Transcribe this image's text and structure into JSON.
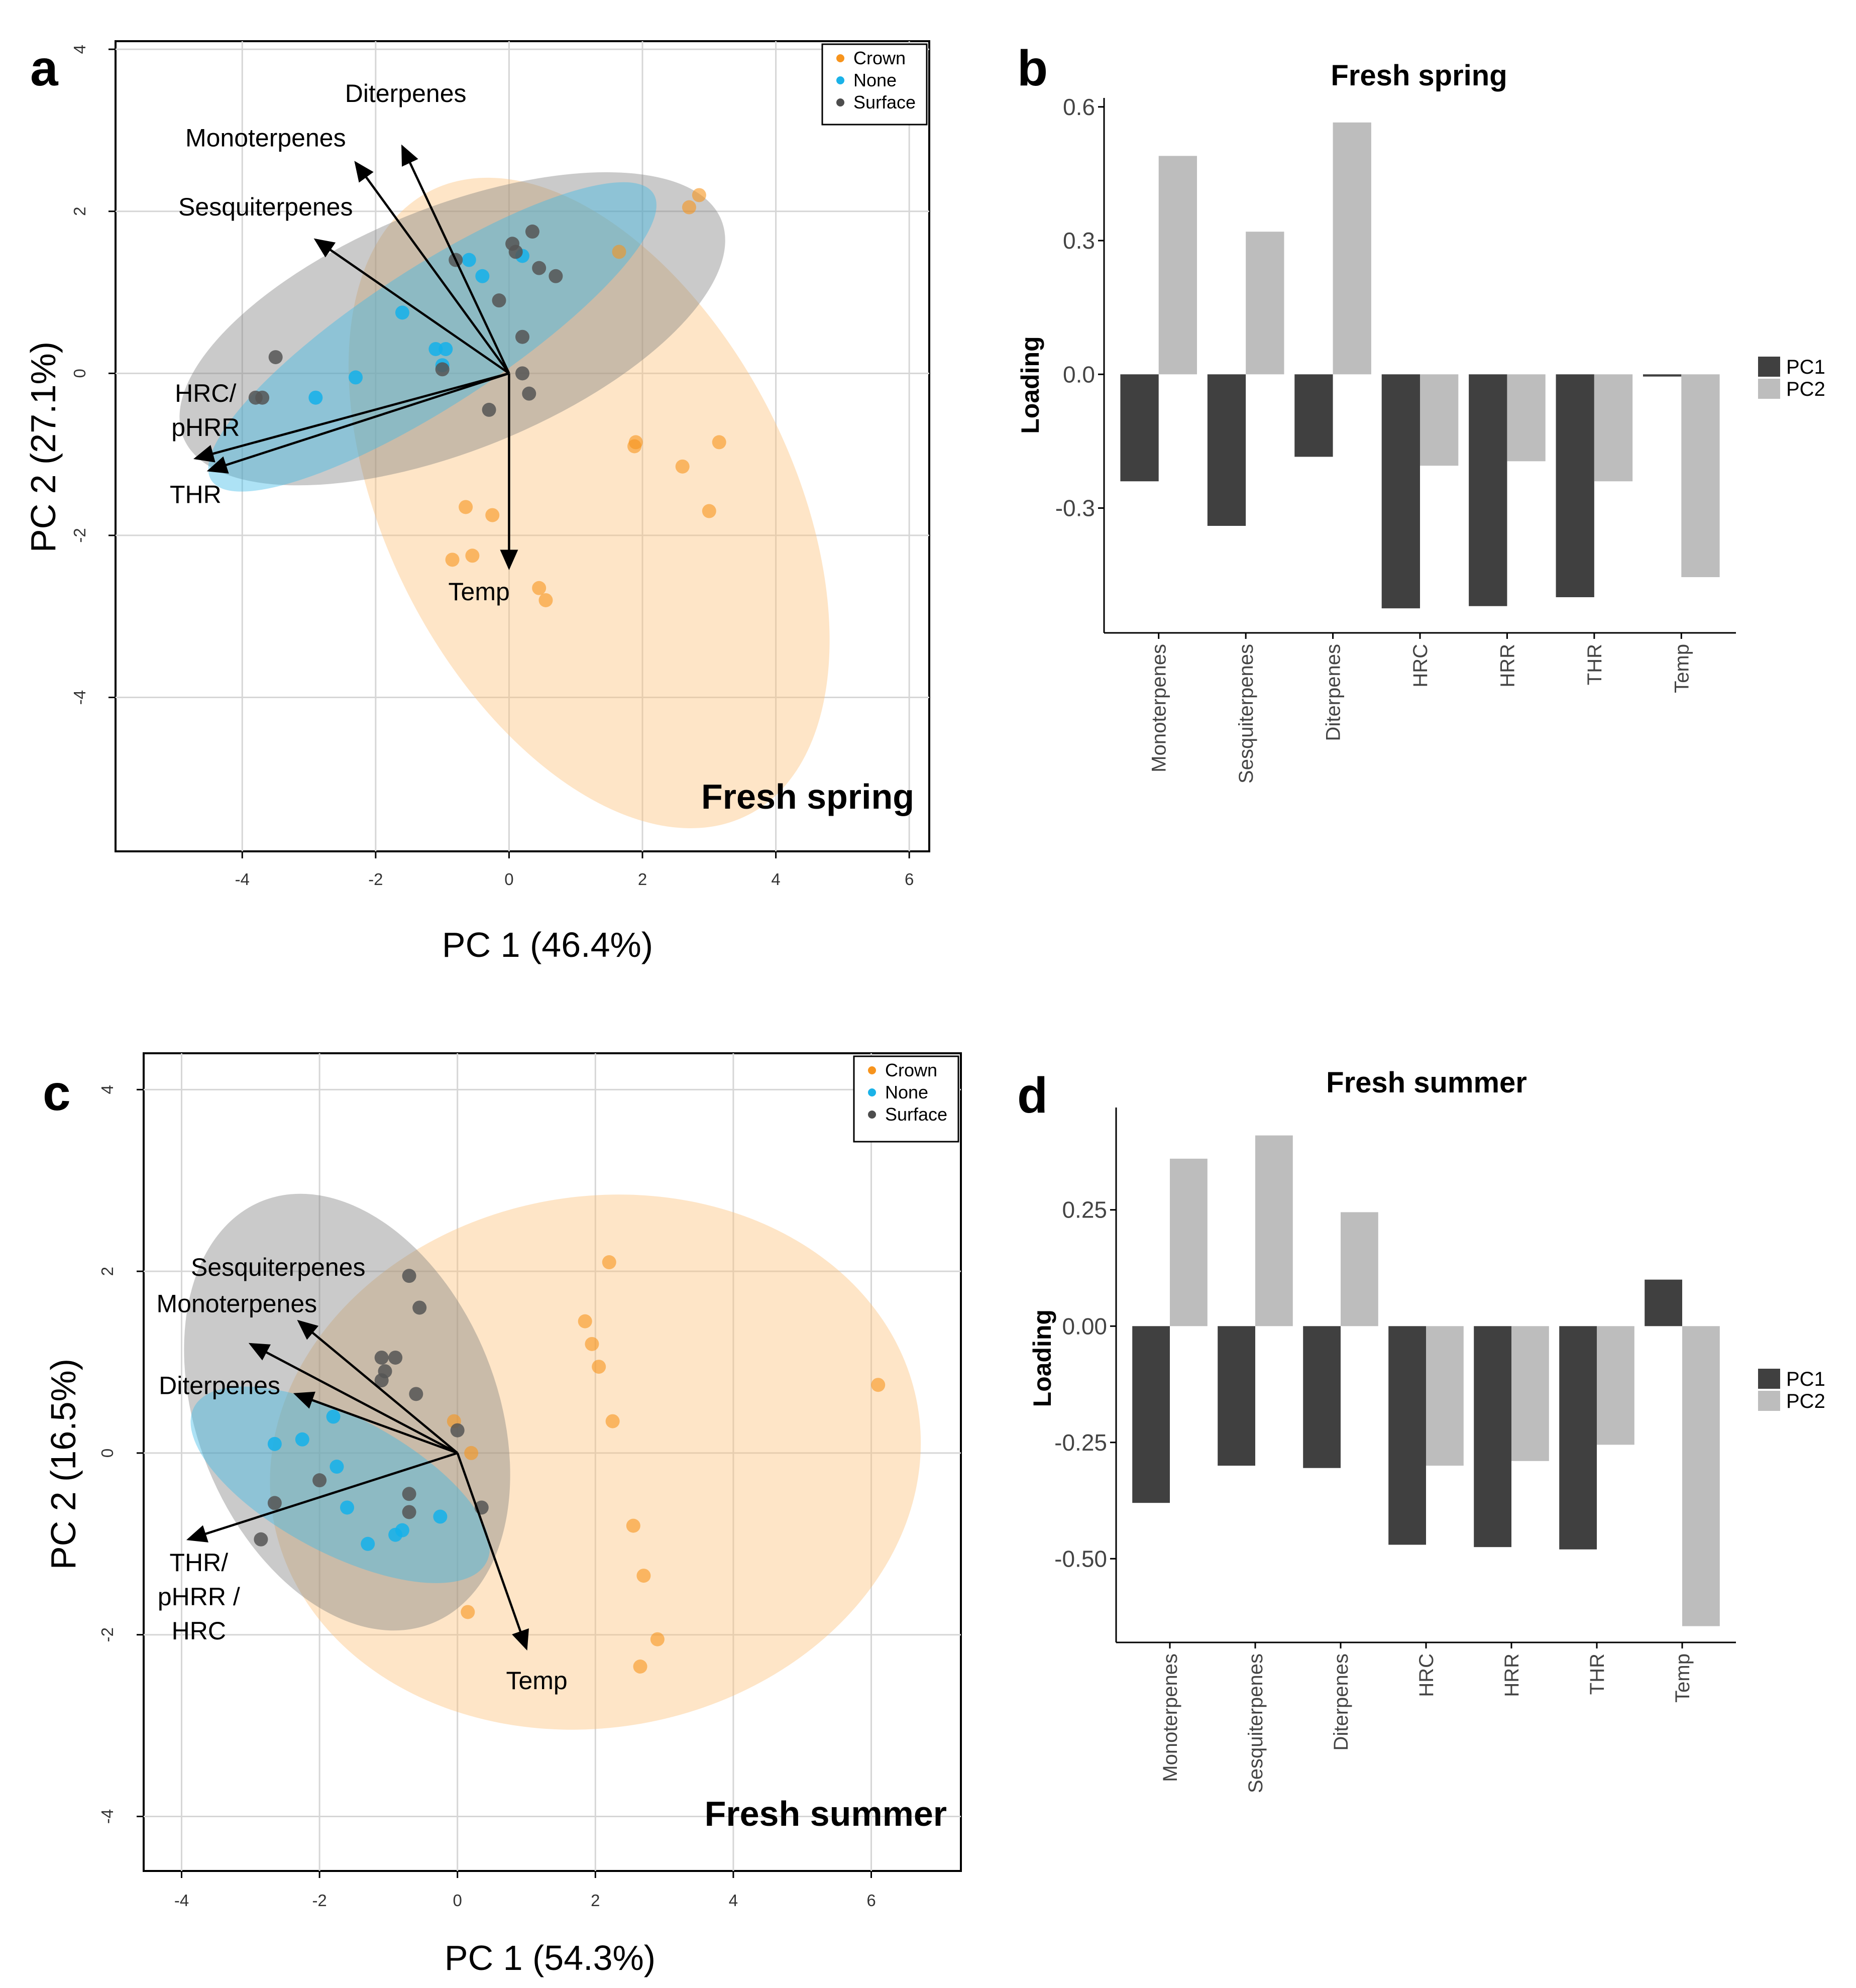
{
  "chart_data": [
    {
      "type": "scatter",
      "panel": "a",
      "title": "Fresh spring",
      "xlabel": "PC 1 (46.4%)",
      "ylabel": "PC 2 (27.1%)",
      "xlim": [
        -5.9,
        6.3
      ],
      "ylim": [
        -5.9,
        4.1
      ],
      "xticks": [
        -4,
        -2,
        0,
        2,
        4,
        6
      ],
      "yticks": [
        -4,
        -2,
        0,
        2,
        4
      ],
      "grid": true,
      "legend": [
        "Crown",
        "None",
        "Surface"
      ],
      "colors": {
        "Crown": "#f7941d",
        "None": "#1ab2e8",
        "Surface": "#4d4d4d"
      },
      "legend_position": "top-right",
      "series": [
        {
          "name": "Crown",
          "points": [
            [
              2.7,
              2.05
            ],
            [
              2.85,
              2.2
            ],
            [
              1.65,
              1.5
            ],
            [
              1.9,
              -0.85
            ],
            [
              1.88,
              -0.9
            ],
            [
              2.6,
              -1.15
            ],
            [
              3.15,
              -0.85
            ],
            [
              3.0,
              -1.7
            ],
            [
              -0.65,
              -1.65
            ],
            [
              -0.25,
              -1.75
            ],
            [
              -0.85,
              -2.3
            ],
            [
              -0.55,
              -2.25
            ],
            [
              0.45,
              -2.65
            ],
            [
              0.55,
              -2.8
            ]
          ]
        },
        {
          "name": "None",
          "points": [
            [
              -0.6,
              1.4
            ],
            [
              -0.4,
              1.2
            ],
            [
              0.2,
              1.45
            ],
            [
              -1.6,
              0.75
            ],
            [
              -1.1,
              0.3
            ],
            [
              -0.95,
              0.3
            ],
            [
              -2.3,
              -0.05
            ],
            [
              -2.9,
              -0.3
            ],
            [
              -1.0,
              0.1
            ]
          ]
        },
        {
          "name": "Surface",
          "points": [
            [
              0.35,
              1.75
            ],
            [
              0.05,
              1.6
            ],
            [
              0.1,
              1.5
            ],
            [
              -0.8,
              1.4
            ],
            [
              0.45,
              1.3
            ],
            [
              0.7,
              1.2
            ],
            [
              -0.15,
              0.9
            ],
            [
              0.2,
              0.45
            ],
            [
              -3.5,
              0.2
            ],
            [
              -3.8,
              -0.3
            ],
            [
              -3.7,
              -0.3
            ],
            [
              -1.0,
              0.05
            ],
            [
              0.2,
              0.0
            ],
            [
              0.3,
              -0.25
            ],
            [
              -0.3,
              -0.45
            ]
          ]
        }
      ],
      "ellipses": [
        {
          "name": "Crown",
          "cx": 1.2,
          "cy": -1.6,
          "rx": 5.25,
          "ry": 2.5,
          "angle_deg": -63
        },
        {
          "name": "None",
          "cx": -1.15,
          "cy": 0.45,
          "rx": 3.95,
          "ry": 0.85,
          "angle_deg": 33
        },
        {
          "name": "Surface",
          "cx": -0.85,
          "cy": 0.55,
          "rx": 4.35,
          "ry": 1.5,
          "angle_deg": 22
        }
      ],
      "vectors": [
        {
          "name": "Diterpenes",
          "x": -1.6,
          "y": 2.8
        },
        {
          "name": "Monoterpenes",
          "x": -2.3,
          "y": 2.6
        },
        {
          "name": "Sesquiterpenes",
          "x": -2.9,
          "y": 1.65
        },
        {
          "name": "HRC/ pHRR",
          "x": -4.7,
          "y": -1.05
        },
        {
          "name": "THR",
          "x": -4.5,
          "y": -1.2
        },
        {
          "name": "Temp",
          "x": 0.0,
          "y": -2.4
        }
      ],
      "vector_labels": [
        {
          "lines": [
            "Diterpenes"
          ],
          "anchor": [
            -1.55,
            3.35
          ]
        },
        {
          "lines": [
            "Monoterpenes"
          ],
          "anchor": [
            -3.65,
            2.8
          ]
        },
        {
          "lines": [
            "Sesquiterpenes"
          ],
          "anchor": [
            -3.65,
            1.95
          ]
        },
        {
          "lines": [
            "HRC/",
            "pHRR"
          ],
          "anchor": [
            -4.55,
            -0.35
          ]
        },
        {
          "lines": [
            "THR"
          ],
          "anchor": [
            -4.7,
            -1.6
          ]
        },
        {
          "lines": [
            "Temp"
          ],
          "anchor": [
            -0.45,
            -2.8
          ]
        }
      ]
    },
    {
      "type": "bar",
      "panel": "b",
      "title": "Fresh spring",
      "xlabel": "",
      "ylabel": "Loading",
      "categories": [
        "Monoterpenes",
        "Sesquiterpenes",
        "Diterpenes",
        "HRC",
        "HRR",
        "THR",
        "Temp"
      ],
      "series": [
        {
          "name": "PC1",
          "color": "#404040",
          "values": [
            -0.24,
            -0.34,
            -0.185,
            -0.525,
            -0.52,
            -0.5,
            -0.005
          ]
        },
        {
          "name": "PC2",
          "color": "#bdbdbd",
          "values": [
            0.49,
            0.32,
            0.565,
            -0.205,
            -0.195,
            -0.24,
            -0.455
          ]
        }
      ],
      "ylim": [
        -0.58,
        0.62
      ],
      "yticks": [
        -0.3,
        0.0,
        0.3,
        0.6
      ],
      "ytick_labels": [
        "-0.3",
        "0.0",
        "0.3",
        "0.6"
      ],
      "legend_position": "right"
    },
    {
      "type": "scatter",
      "panel": "c",
      "title": "Fresh summer",
      "xlabel": "PC 1 (54.3%)",
      "ylabel": "PC 2 (16.5%)",
      "xlim": [
        -4.55,
        7.3
      ],
      "ylim": [
        -4.6,
        4.4
      ],
      "xticks": [
        -4,
        -2,
        0,
        2,
        4,
        6
      ],
      "yticks": [
        -4,
        -2,
        0,
        2,
        4
      ],
      "grid": true,
      "legend": [
        "Crown",
        "None",
        "Surface"
      ],
      "colors": {
        "Crown": "#f7941d",
        "None": "#1ab2e8",
        "Surface": "#4d4d4d"
      },
      "legend_position": "top-right",
      "series": [
        {
          "name": "Crown",
          "points": [
            [
              2.2,
              2.1
            ],
            [
              1.85,
              1.45
            ],
            [
              1.95,
              1.2
            ],
            [
              2.05,
              0.95
            ],
            [
              2.25,
              0.35
            ],
            [
              6.1,
              0.75
            ],
            [
              -0.05,
              0.35
            ],
            [
              0.2,
              0.0
            ],
            [
              2.55,
              -0.8
            ],
            [
              2.7,
              -1.35
            ],
            [
              2.9,
              -2.05
            ],
            [
              2.65,
              -2.35
            ],
            [
              0.15,
              -1.75
            ]
          ]
        },
        {
          "name": "None",
          "points": [
            [
              -1.8,
              0.4
            ],
            [
              -2.25,
              0.15
            ],
            [
              -2.65,
              0.1
            ],
            [
              -1.75,
              -0.15
            ],
            [
              -1.6,
              -0.6
            ],
            [
              -1.3,
              -1.0
            ],
            [
              -0.8,
              -0.85
            ],
            [
              -0.9,
              -0.9
            ],
            [
              -0.25,
              -0.7
            ]
          ]
        },
        {
          "name": "Surface",
          "points": [
            [
              -0.7,
              1.95
            ],
            [
              -0.55,
              1.6
            ],
            [
              -1.1,
              1.05
            ],
            [
              -0.9,
              1.05
            ],
            [
              -1.05,
              0.9
            ],
            [
              -1.1,
              0.8
            ],
            [
              -0.6,
              0.65
            ],
            [
              0.0,
              0.25
            ],
            [
              -2.0,
              -0.3
            ],
            [
              -2.65,
              -0.55
            ],
            [
              -0.7,
              -0.45
            ],
            [
              -0.7,
              -0.65
            ],
            [
              0.35,
              -0.6
            ],
            [
              -2.85,
              -0.95
            ]
          ]
        }
      ],
      "ellipses": [
        {
          "name": "Crown",
          "cx": 2.0,
          "cy": -0.1,
          "rx": 3.85,
          "ry": 3.6,
          "angle_deg": -80
        },
        {
          "name": "None",
          "cx": -1.7,
          "cy": -0.35,
          "rx": 2.4,
          "ry": 0.75,
          "angle_deg": -28
        },
        {
          "name": "Surface",
          "cx": -1.6,
          "cy": 0.45,
          "rx": 3.3,
          "ry": 1.65,
          "angle_deg": -68
        }
      ],
      "vectors": [
        {
          "name": "Sesquiterpenes",
          "x": -2.3,
          "y": 1.45
        },
        {
          "name": "Monoterpenes",
          "x": -3.0,
          "y": 1.2
        },
        {
          "name": "Diterpenes",
          "x": -2.35,
          "y": 0.65
        },
        {
          "name": "THR/ pHRR / HRC",
          "x": -3.9,
          "y": -0.95
        },
        {
          "name": "Temp",
          "x": 1.0,
          "y": -2.15
        }
      ],
      "vector_labels": [
        {
          "lines": [
            "Sesquiterpenes"
          ],
          "anchor": [
            -2.6,
            1.95
          ]
        },
        {
          "lines": [
            "Monoterpenes"
          ],
          "anchor": [
            -3.2,
            1.55
          ]
        },
        {
          "lines": [
            "Diterpenes"
          ],
          "anchor": [
            -3.45,
            0.65
          ]
        },
        {
          "lines": [
            "THR/",
            "pHRR /",
            "HRC"
          ],
          "anchor": [
            -3.75,
            -1.3
          ]
        },
        {
          "lines": [
            "Temp"
          ],
          "anchor": [
            1.15,
            -2.6
          ]
        }
      ]
    },
    {
      "type": "bar",
      "panel": "d",
      "title": "Fresh summer",
      "xlabel": "",
      "ylabel": "Loading",
      "categories": [
        "Monoterpenes",
        "Sesquiterpenes",
        "Diterpenes",
        "HRC",
        "HRR",
        "THR",
        "Temp"
      ],
      "series": [
        {
          "name": "PC1",
          "color": "#404040",
          "values": [
            -0.38,
            -0.3,
            -0.305,
            -0.47,
            -0.475,
            -0.48,
            0.1
          ]
        },
        {
          "name": "PC2",
          "color": "#bdbdbd",
          "values": [
            0.36,
            0.41,
            0.245,
            -0.3,
            -0.29,
            -0.255,
            -0.645
          ]
        }
      ],
      "ylim": [
        -0.68,
        0.47
      ],
      "yticks": [
        -0.5,
        -0.25,
        0.0,
        0.25
      ],
      "ytick_labels": [
        "-0.50",
        "-0.25",
        "0.00",
        "0.25"
      ],
      "legend_position": "right"
    }
  ]
}
